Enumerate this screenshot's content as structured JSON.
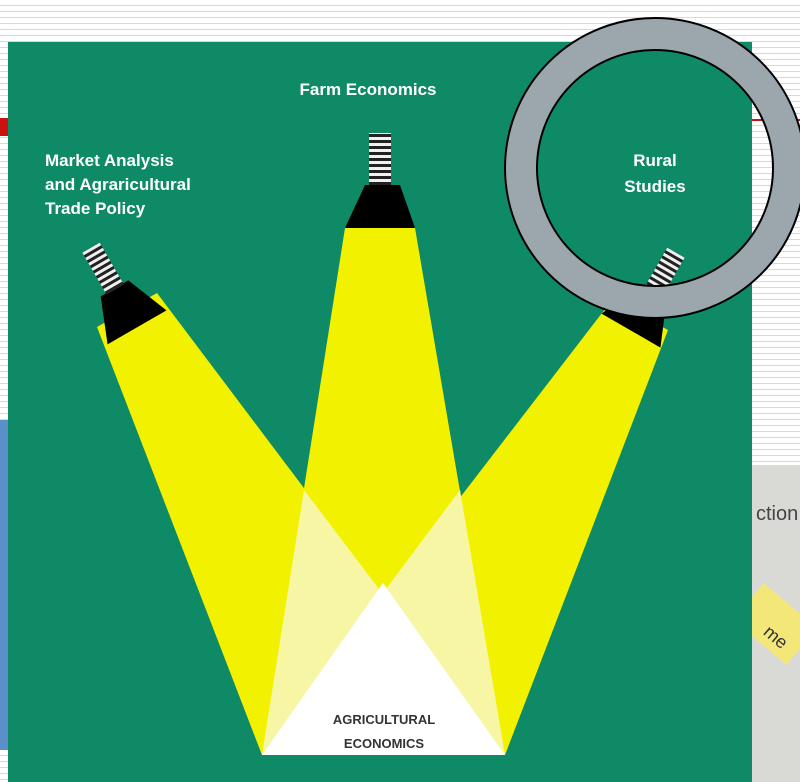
{
  "spotlights": [
    {
      "label": [
        "Market Analysis",
        "and Agraricultural",
        "Trade Policy"
      ]
    },
    {
      "label": [
        "Farm Economics"
      ]
    },
    {
      "label": [
        "Rural",
        "Studies"
      ]
    }
  ],
  "center_label": [
    "AGRICULTURAL",
    "ECONOMICS"
  ],
  "background_fragments": [
    "ction",
    "me"
  ]
}
